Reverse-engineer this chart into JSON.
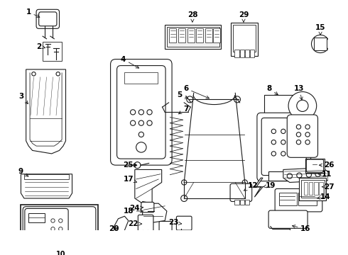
{
  "bg_color": "#ffffff",
  "line_color": "#1a1a1a",
  "label_color": "#000000",
  "figsize": [
    4.9,
    3.6
  ],
  "dpi": 100
}
